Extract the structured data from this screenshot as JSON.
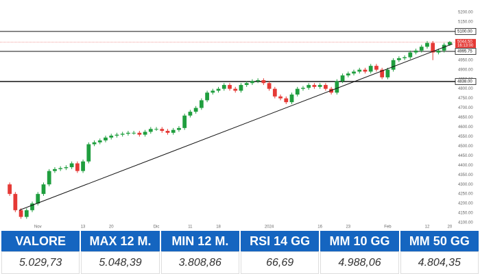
{
  "chart_data": {
    "type": "candlestick",
    "categories": [
      null,
      null,
      null,
      null,
      null,
      "Nov",
      null,
      null,
      null,
      null,
      null,
      null,
      null,
      "13",
      null,
      null,
      null,
      null,
      "20",
      null,
      null,
      null,
      null,
      null,
      null,
      null,
      "Dic",
      null,
      null,
      null,
      null,
      null,
      "11",
      null,
      null,
      null,
      null,
      "18",
      null,
      null,
      null,
      null,
      null,
      null,
      null,
      null,
      "2024",
      null,
      null,
      null,
      null,
      null,
      null,
      null,
      null,
      "16",
      null,
      null,
      null,
      null,
      "23",
      null,
      null,
      null,
      null,
      null,
      null,
      "Feb",
      null,
      null,
      null,
      null,
      null,
      null,
      "12",
      null,
      null,
      null,
      "20"
    ],
    "open": [
      4300,
      4250,
      4165,
      4130,
      4165,
      4200,
      4250,
      4300,
      4370,
      4380,
      4385,
      4390,
      4410,
      4370,
      4420,
      4510,
      4520,
      4530,
      4545,
      4555,
      4560,
      4565,
      4570,
      4570,
      4560,
      4575,
      4590,
      4590,
      4580,
      4570,
      4585,
      4595,
      4660,
      4680,
      4700,
      4740,
      4780,
      4790,
      4800,
      4820,
      4800,
      4790,
      4820,
      4830,
      4840,
      4845,
      4830,
      4800,
      4760,
      4750,
      4730,
      4770,
      4800,
      4805,
      4820,
      4810,
      4820,
      4800,
      4780,
      4840,
      4870,
      4880,
      4890,
      4900,
      4890,
      4920,
      4900,
      4860,
      4900,
      4950,
      4960,
      4965,
      4990,
      5000,
      5020,
      5040,
      4990,
      5000,
      5030
    ],
    "high": [
      4310,
      4260,
      4175,
      4175,
      4210,
      4260,
      4310,
      4380,
      4390,
      4395,
      4400,
      4420,
      4420,
      4430,
      4520,
      4530,
      4540,
      4555,
      4565,
      4570,
      4575,
      4580,
      4580,
      4580,
      4585,
      4600,
      4600,
      4600,
      4590,
      4595,
      4605,
      4670,
      4690,
      4710,
      4750,
      4790,
      4800,
      4810,
      4830,
      4830,
      4810,
      4830,
      4840,
      4850,
      4855,
      4855,
      4840,
      4810,
      4770,
      4760,
      4780,
      4810,
      4815,
      4830,
      4830,
      4830,
      4830,
      4810,
      4850,
      4880,
      4890,
      4900,
      4910,
      4910,
      4930,
      4930,
      4910,
      4910,
      4960,
      4970,
      4975,
      5000,
      5010,
      5030,
      5050,
      5050,
      5010,
      5040,
      5050
    ],
    "low": [
      4240,
      4155,
      4120,
      4120,
      4155,
      4190,
      4240,
      4290,
      4360,
      4370,
      4375,
      4380,
      4360,
      4360,
      4410,
      4500,
      4510,
      4520,
      4535,
      4545,
      4550,
      4555,
      4560,
      4550,
      4550,
      4565,
      4580,
      4570,
      4560,
      4560,
      4575,
      4585,
      4650,
      4670,
      4690,
      4730,
      4770,
      4780,
      4790,
      4790,
      4780,
      4780,
      4810,
      4820,
      4830,
      4820,
      4790,
      4750,
      4740,
      4720,
      4720,
      4760,
      4790,
      4795,
      4800,
      4800,
      4790,
      4770,
      4770,
      4830,
      4860,
      4870,
      4880,
      4880,
      4880,
      4890,
      4850,
      4850,
      4890,
      4940,
      4950,
      4955,
      4980,
      4990,
      5010,
      4950,
      4980,
      4990,
      5025
    ],
    "close": [
      4250,
      4165,
      4130,
      4165,
      4200,
      4250,
      4300,
      4370,
      4380,
      4385,
      4390,
      4410,
      4370,
      4420,
      4510,
      4520,
      4530,
      4545,
      4555,
      4560,
      4565,
      4570,
      4570,
      4560,
      4575,
      4590,
      4590,
      4580,
      4570,
      4585,
      4595,
      4660,
      4680,
      4700,
      4740,
      4780,
      4790,
      4800,
      4820,
      4800,
      4790,
      4820,
      4830,
      4840,
      4845,
      4830,
      4800,
      4760,
      4750,
      4730,
      4770,
      4800,
      4805,
      4820,
      4810,
      4820,
      4800,
      4780,
      4840,
      4870,
      4880,
      4890,
      4900,
      4890,
      4920,
      4900,
      4860,
      4900,
      4950,
      4960,
      4965,
      4990,
      5000,
      5020,
      5040,
      4990,
      5000,
      5030,
      5044.5
    ],
    "up_color": "#1f9e3e",
    "down_color": "#e53935",
    "ylim": [
      4100,
      5200
    ],
    "yticks": [
      {
        "value": 4100,
        "label": "4100.00"
      },
      {
        "value": 4150,
        "label": "4150.00"
      },
      {
        "value": 4200,
        "label": "4200.00"
      },
      {
        "value": 4250,
        "label": "4250.00"
      },
      {
        "value": 4300,
        "label": "4300.00"
      },
      {
        "value": 4350,
        "label": "4350.00"
      },
      {
        "value": 4400,
        "label": "4400.00"
      },
      {
        "value": 4450,
        "label": "4450.00"
      },
      {
        "value": 4500,
        "label": "4500.00"
      },
      {
        "value": 4550,
        "label": "4550.00"
      },
      {
        "value": 4600,
        "label": "4600.00"
      },
      {
        "value": 4650,
        "label": "4650.00"
      },
      {
        "value": 4700,
        "label": "4700.00"
      },
      {
        "value": 4750,
        "label": "4750.00"
      },
      {
        "value": 4800,
        "label": "4800.00"
      },
      {
        "value": 4850,
        "label": "4850.00"
      },
      {
        "value": 4900,
        "label": "4900.00"
      },
      {
        "value": 4950,
        "label": "4950.00"
      },
      {
        "value": 5150,
        "label": "5150.00"
      },
      {
        "value": 5200,
        "label": "5200.00"
      }
    ],
    "levels": [
      {
        "value": 5100,
        "label": "5100.00"
      },
      {
        "value": 4995.75,
        "label": "4995.75"
      },
      {
        "value": 4838,
        "label": "4838.00"
      }
    ],
    "last_price": {
      "value": 5044.5,
      "label": "5044.50"
    },
    "countdown": "16:13:00",
    "trendline": {
      "x": [
        1.7,
        78.5
      ],
      "y": [
        4165,
        5035
      ]
    },
    "grid": false
  },
  "table": {
    "headers": [
      "VALORE",
      "MAX 12 M.",
      "MIN 12 M.",
      "RSI 14 GG",
      "MM 10 GG",
      "MM 50 GG"
    ],
    "rows": [
      [
        "5.029,73",
        "5.048,39",
        "3.808,86",
        "66,69",
        "4.988,06",
        "4.804,35"
      ]
    ]
  }
}
